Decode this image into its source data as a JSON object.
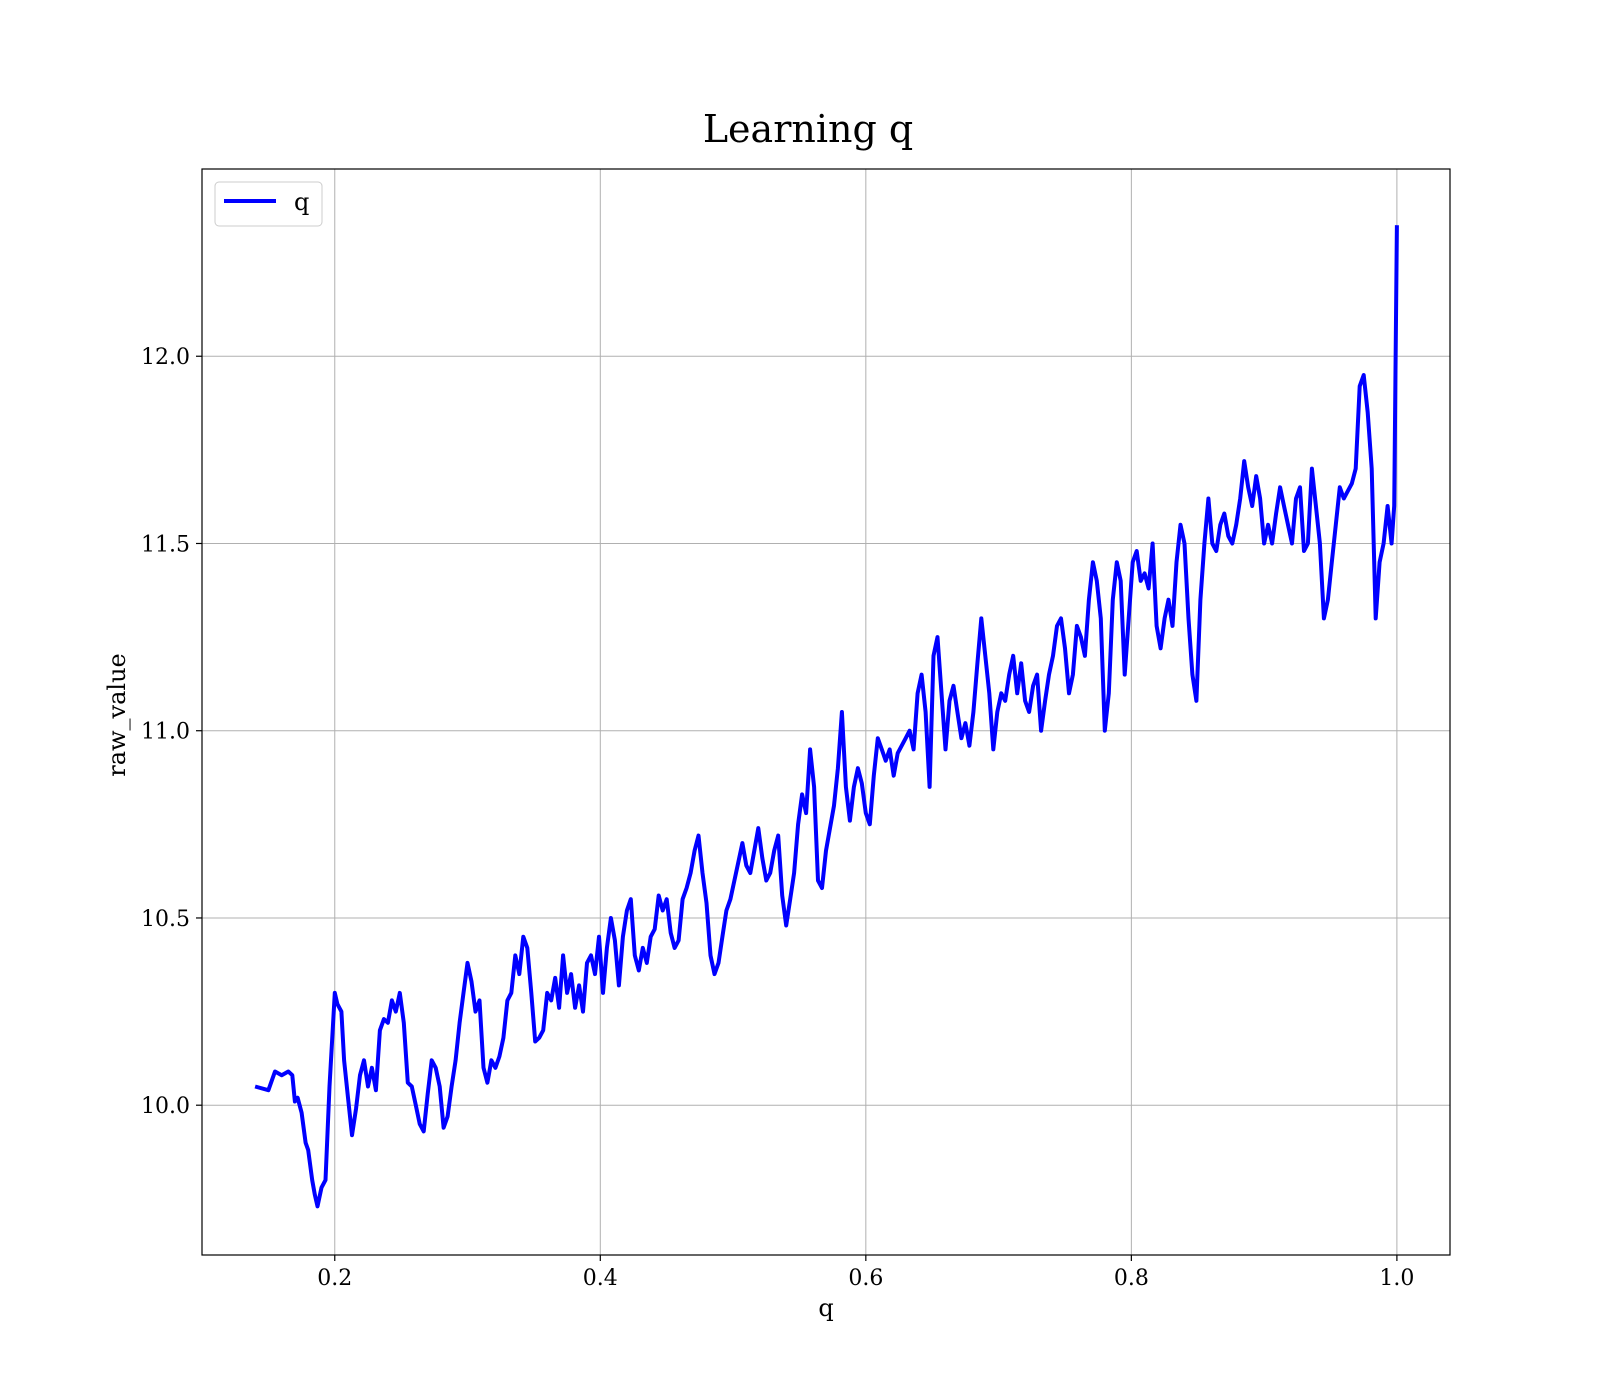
{
  "chart_data": {
    "type": "line",
    "title": "Learning q",
    "xlabel": "q",
    "ylabel": "raw_value",
    "xlim": [
      0.1,
      1.04
    ],
    "ylim": [
      9.6,
      12.5
    ],
    "xticks": [
      0.2,
      0.4,
      0.6,
      0.8,
      1.0
    ],
    "xtick_labels": [
      "0.2",
      "0.4",
      "0.6",
      "0.8",
      "1.0"
    ],
    "yticks": [
      10.0,
      10.5,
      11.0,
      11.5,
      12.0
    ],
    "ytick_labels": [
      "10.0",
      "10.5",
      "11.0",
      "11.5",
      "12.0"
    ],
    "grid": true,
    "legend": {
      "position": "top-left",
      "entries": [
        "q"
      ]
    },
    "series": [
      {
        "name": "q",
        "color": "#0000ff",
        "x": [
          0.14,
          0.15,
          0.155,
          0.16,
          0.165,
          0.168,
          0.17,
          0.172,
          0.175,
          0.178,
          0.18,
          0.183,
          0.185,
          0.187,
          0.19,
          0.193,
          0.196,
          0.2,
          0.202,
          0.205,
          0.207,
          0.21,
          0.213,
          0.216,
          0.219,
          0.222,
          0.225,
          0.228,
          0.231,
          0.234,
          0.237,
          0.24,
          0.243,
          0.246,
          0.249,
          0.252,
          0.255,
          0.258,
          0.261,
          0.264,
          0.267,
          0.27,
          0.273,
          0.276,
          0.279,
          0.282,
          0.285,
          0.288,
          0.291,
          0.294,
          0.297,
          0.3,
          0.303,
          0.306,
          0.309,
          0.312,
          0.315,
          0.318,
          0.321,
          0.324,
          0.327,
          0.33,
          0.333,
          0.336,
          0.339,
          0.342,
          0.345,
          0.348,
          0.351,
          0.354,
          0.357,
          0.36,
          0.363,
          0.366,
          0.369,
          0.372,
          0.375,
          0.378,
          0.381,
          0.384,
          0.387,
          0.39,
          0.393,
          0.396,
          0.399,
          0.402,
          0.405,
          0.408,
          0.411,
          0.414,
          0.417,
          0.42,
          0.423,
          0.426,
          0.429,
          0.432,
          0.435,
          0.438,
          0.441,
          0.444,
          0.447,
          0.45,
          0.453,
          0.456,
          0.459,
          0.462,
          0.465,
          0.468,
          0.471,
          0.474,
          0.477,
          0.48,
          0.483,
          0.486,
          0.489,
          0.492,
          0.495,
          0.498,
          0.501,
          0.504,
          0.507,
          0.51,
          0.513,
          0.516,
          0.519,
          0.522,
          0.525,
          0.528,
          0.531,
          0.534,
          0.537,
          0.54,
          0.543,
          0.546,
          0.549,
          0.552,
          0.555,
          0.558,
          0.561,
          0.564,
          0.567,
          0.57,
          0.573,
          0.576,
          0.579,
          0.582,
          0.585,
          0.588,
          0.591,
          0.594,
          0.597,
          0.6,
          0.603,
          0.606,
          0.609,
          0.612,
          0.615,
          0.618,
          0.621,
          0.624,
          0.627,
          0.63,
          0.633,
          0.636,
          0.639,
          0.642,
          0.645,
          0.648,
          0.651,
          0.654,
          0.657,
          0.66,
          0.663,
          0.666,
          0.669,
          0.672,
          0.675,
          0.678,
          0.681,
          0.684,
          0.687,
          0.69,
          0.693,
          0.696,
          0.699,
          0.702,
          0.705,
          0.708,
          0.711,
          0.714,
          0.717,
          0.72,
          0.723,
          0.726,
          0.729,
          0.732,
          0.735,
          0.738,
          0.741,
          0.744,
          0.747,
          0.75,
          0.753,
          0.756,
          0.759,
          0.762,
          0.765,
          0.768,
          0.771,
          0.774,
          0.777,
          0.78,
          0.783,
          0.786,
          0.789,
          0.792,
          0.795,
          0.798,
          0.801,
          0.804,
          0.807,
          0.81,
          0.813,
          0.816,
          0.819,
          0.822,
          0.825,
          0.828,
          0.831,
          0.834,
          0.837,
          0.84,
          0.843,
          0.846,
          0.849,
          0.852,
          0.855,
          0.858,
          0.861,
          0.864,
          0.867,
          0.87,
          0.873,
          0.876,
          0.879,
          0.882,
          0.885,
          0.888,
          0.891,
          0.894,
          0.897,
          0.9,
          0.903,
          0.906,
          0.909,
          0.912,
          0.915,
          0.918,
          0.921,
          0.924,
          0.927,
          0.93,
          0.933,
          0.936,
          0.939,
          0.942,
          0.945,
          0.948,
          0.951,
          0.954,
          0.957,
          0.96,
          0.963,
          0.966,
          0.969,
          0.972,
          0.975,
          0.978,
          0.981,
          0.984,
          0.987,
          0.99,
          0.993,
          0.996,
          0.998,
          1.0
        ],
        "y": [
          10.05,
          10.04,
          10.09,
          10.08,
          10.09,
          10.08,
          10.01,
          10.02,
          9.98,
          9.9,
          9.88,
          9.8,
          9.76,
          9.73,
          9.78,
          9.8,
          10.05,
          10.3,
          10.27,
          10.25,
          10.12,
          10.02,
          9.92,
          9.99,
          10.08,
          10.12,
          10.05,
          10.1,
          10.04,
          10.2,
          10.23,
          10.22,
          10.28,
          10.25,
          10.3,
          10.22,
          10.06,
          10.05,
          10.0,
          9.95,
          9.93,
          10.03,
          10.12,
          10.1,
          10.05,
          9.94,
          9.97,
          10.05,
          10.12,
          10.22,
          10.3,
          10.38,
          10.33,
          10.25,
          10.28,
          10.1,
          10.06,
          10.12,
          10.1,
          10.13,
          10.18,
          10.28,
          10.3,
          10.4,
          10.35,
          10.45,
          10.42,
          10.3,
          10.17,
          10.18,
          10.2,
          10.3,
          10.28,
          10.34,
          10.26,
          10.4,
          10.3,
          10.35,
          10.26,
          10.32,
          10.25,
          10.38,
          10.4,
          10.35,
          10.45,
          10.3,
          10.42,
          10.5,
          10.44,
          10.32,
          10.45,
          10.52,
          10.55,
          10.4,
          10.36,
          10.42,
          10.38,
          10.45,
          10.47,
          10.56,
          10.52,
          10.55,
          10.46,
          10.42,
          10.44,
          10.55,
          10.58,
          10.62,
          10.68,
          10.72,
          10.62,
          10.54,
          10.4,
          10.35,
          10.38,
          10.45,
          10.52,
          10.55,
          10.6,
          10.65,
          10.7,
          10.64,
          10.62,
          10.68,
          10.74,
          10.66,
          10.6,
          10.62,
          10.68,
          10.72,
          10.56,
          10.48,
          10.55,
          10.62,
          10.75,
          10.83,
          10.78,
          10.95,
          10.85,
          10.6,
          10.58,
          10.68,
          10.74,
          10.8,
          10.9,
          11.05,
          10.85,
          10.76,
          10.85,
          10.9,
          10.86,
          10.78,
          10.75,
          10.88,
          10.98,
          10.95,
          10.92,
          10.95,
          10.88,
          10.94,
          10.96,
          10.98,
          11.0,
          10.95,
          11.1,
          11.15,
          11.05,
          10.85,
          11.2,
          11.25,
          11.1,
          10.95,
          11.08,
          11.12,
          11.05,
          10.98,
          11.02,
          10.96,
          11.05,
          11.18,
          11.3,
          11.2,
          11.1,
          10.95,
          11.05,
          11.1,
          11.08,
          11.15,
          11.2,
          11.1,
          11.18,
          11.08,
          11.05,
          11.12,
          11.15,
          11.0,
          11.08,
          11.15,
          11.2,
          11.28,
          11.3,
          11.22,
          11.1,
          11.15,
          11.28,
          11.25,
          11.2,
          11.35,
          11.45,
          11.4,
          11.3,
          11.0,
          11.1,
          11.35,
          11.45,
          11.4,
          11.15,
          11.3,
          11.45,
          11.48,
          11.4,
          11.42,
          11.38,
          11.5,
          11.28,
          11.22,
          11.3,
          11.35,
          11.28,
          11.45,
          11.55,
          11.5,
          11.3,
          11.15,
          11.08,
          11.35,
          11.5,
          11.62,
          11.5,
          11.48,
          11.55,
          11.58,
          11.52,
          11.5,
          11.55,
          11.62,
          11.72,
          11.65,
          11.6,
          11.68,
          11.62,
          11.5,
          11.55,
          11.5,
          11.58,
          11.65,
          11.6,
          11.55,
          11.5,
          11.62,
          11.65,
          11.48,
          11.5,
          11.7,
          11.6,
          11.5,
          11.3,
          11.35,
          11.45,
          11.55,
          11.65,
          11.62,
          11.64,
          11.66,
          11.7,
          11.92,
          11.95,
          11.85,
          11.7,
          11.3,
          11.45,
          11.5,
          11.6,
          11.5,
          11.6,
          12.35
        ]
      }
    ]
  }
}
